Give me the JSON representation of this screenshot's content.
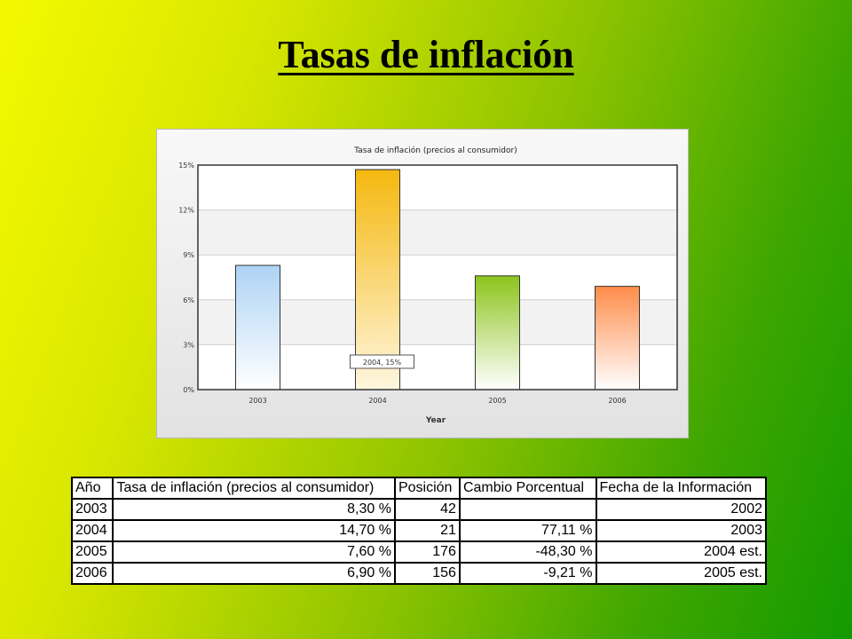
{
  "slide": {
    "title": "Tasas de inflación"
  },
  "chart_data": {
    "type": "bar",
    "title": "Tasa de inflación (precios al consumidor)",
    "xlabel": "Year",
    "ylabel": "",
    "categories": [
      "2003",
      "2004",
      "2005",
      "2006"
    ],
    "values": [
      8.3,
      14.7,
      7.6,
      6.9
    ],
    "ylim": [
      0,
      15
    ],
    "yticks": [
      "0%",
      "3%",
      "6%",
      "9%",
      "12%",
      "15%"
    ],
    "grid": true,
    "colors": [
      {
        "top": "#aed3f5",
        "bottom": "#ffffff"
      },
      {
        "top": "#f5b80f",
        "bottom": "#fff6df"
      },
      {
        "top": "#8cc41c",
        "bottom": "#ffffff"
      },
      {
        "top": "#ff8c4a",
        "bottom": "#ffffff"
      }
    ],
    "tooltip": {
      "text": "2004, 15%"
    }
  },
  "table": {
    "headers": [
      "Año",
      "Tasa de inflación (precios al consumidor)",
      "Posición",
      "Cambio Porcentual",
      "Fecha de la Información"
    ],
    "rows": [
      [
        "2003",
        "8,30 %",
        "42",
        "",
        "2002"
      ],
      [
        "2004",
        "14,70 %",
        "21",
        "77,11 %",
        "2003"
      ],
      [
        "2005",
        "7,60 %",
        "176",
        "-48,30 %",
        "2004 est."
      ],
      [
        "2006",
        "6,90 %",
        "156",
        "-9,21 %",
        "2005 est."
      ]
    ]
  }
}
